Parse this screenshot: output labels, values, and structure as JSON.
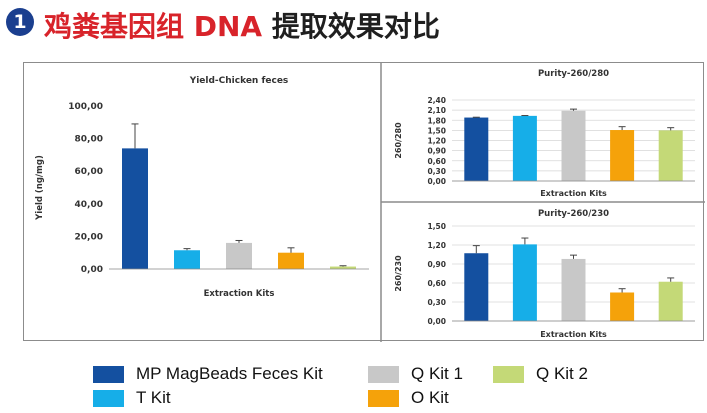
{
  "header": {
    "step": "1",
    "title_red": "鸡粪基因组 DNA ",
    "title_dark": "提取效果对比"
  },
  "colors": {
    "mp": "#1450a0",
    "t": "#16aee8",
    "q1": "#c8c8c8",
    "o": "#f5a20a",
    "q2": "#c4d977",
    "grid": "#d6d6d6",
    "axis": "#888888",
    "badge": "#1b3f8f",
    "title_red": "#d8232a"
  },
  "legend": [
    {
      "label": "MP MagBeads Feces  Kit",
      "color": "#1450a0"
    },
    {
      "label": "T Kit",
      "color": "#16aee8"
    },
    {
      "label": "Q Kit 1",
      "color": "#c8c8c8"
    },
    {
      "label": "O Kit",
      "color": "#f5a20a"
    },
    {
      "label": "Q Kit 2",
      "color": "#c4d977"
    }
  ],
  "chart_data": [
    {
      "type": "bar",
      "title": "Yield-Chicken feces",
      "xlabel": "Extraction Kits",
      "ylabel": "Yield  (ng/mg)",
      "categories": [
        "MP MagBeads Feces  Kit",
        "T Kit",
        "Q Kit 1",
        "O Kit",
        "Q Kit 2"
      ],
      "values": [
        74,
        11.5,
        16,
        10,
        1.5
      ],
      "errors": [
        15,
        1,
        1.5,
        3,
        0.5
      ],
      "ylim": [
        0,
        100
      ],
      "ticks": [
        0,
        20,
        40,
        60,
        80,
        100
      ],
      "tick_labels": [
        "0,00",
        "20,00",
        "40,00",
        "60,00",
        "80,00",
        "100,00"
      ],
      "grid": false,
      "legend": "bottom"
    },
    {
      "type": "bar",
      "title": "Purity-260/280",
      "xlabel": "Extraction Kits",
      "ylabel": "260/280",
      "categories": [
        "MP MagBeads Feces  Kit",
        "T Kit",
        "Q Kit 1",
        "O Kit",
        "Q Kit 2"
      ],
      "values": [
        1.88,
        1.93,
        2.08,
        1.51,
        1.5
      ],
      "errors": [
        0.01,
        0.01,
        0.05,
        0.1,
        0.08
      ],
      "ylim": [
        0,
        2.4
      ],
      "ticks": [
        0,
        0.3,
        0.6,
        0.9,
        1.2,
        1.5,
        1.8,
        2.1,
        2.4
      ],
      "tick_labels": [
        "0,00",
        "0,30",
        "0,60",
        "0,90",
        "1,20",
        "1,50",
        "1,80",
        "2,10",
        "2,40"
      ],
      "grid": true,
      "legend": "bottom"
    },
    {
      "type": "bar",
      "title": "Purity-260/230",
      "xlabel": "Extraction Kits",
      "ylabel": "260/230",
      "categories": [
        "MP MagBeads Feces  Kit",
        "T Kit",
        "Q Kit 1",
        "O Kit",
        "Q Kit 2"
      ],
      "values": [
        1.07,
        1.21,
        0.98,
        0.45,
        0.62
      ],
      "errors": [
        0.12,
        0.1,
        0.06,
        0.06,
        0.06
      ],
      "ylim": [
        0,
        1.5
      ],
      "ticks": [
        0,
        0.3,
        0.6,
        0.9,
        1.2,
        1.5
      ],
      "tick_labels": [
        "0,00",
        "0,30",
        "0,60",
        "0,90",
        "1,20",
        "1,50"
      ],
      "grid": true,
      "legend": "bottom"
    }
  ]
}
